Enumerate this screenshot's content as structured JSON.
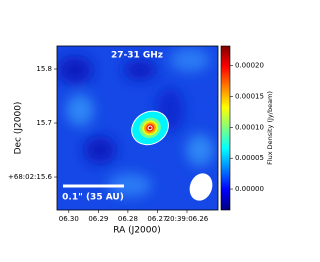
{
  "chart_data": {
    "type": "image",
    "title": "27-31 GHz",
    "xlabel": "RA (J2000)",
    "ylabel": "Dec (J2000)",
    "colorbar_label": "Flux Density (Jy/beam)",
    "scalebar_label": "0.1\" (35 AU)",
    "colormap": "jet",
    "xlim": [
      6.304,
      6.2495
    ],
    "xticks": [
      {
        "value": 6.3,
        "label": "06.30"
      },
      {
        "value": 6.29,
        "label": "06.29"
      },
      {
        "value": 6.28,
        "label": "06.28"
      },
      {
        "value": 6.27,
        "label": "06.27"
      },
      {
        "value": 6.26,
        "label": "20:39:06.26"
      }
    ],
    "ylim": [
      15.539,
      15.8426
    ],
    "yticks": [
      {
        "value": 15.8,
        "label": "15.8"
      },
      {
        "value": 15.7,
        "label": "15.7"
      },
      {
        "value": 15.6,
        "label": "+68:02:15.6"
      }
    ],
    "clim": [
      -3.4e-05,
      0.000232
    ],
    "cticks": [
      {
        "value": 0.0002,
        "label": "0.00020"
      },
      {
        "value": 0.00015,
        "label": "0.00015"
      },
      {
        "value": 0.0001,
        "label": "0.00010"
      },
      {
        "value": 5e-05,
        "label": "0.00005"
      },
      {
        "value": 0,
        "label": "0.00000"
      }
    ],
    "peak": {
      "x": 6.2725,
      "y": 15.691,
      "value": 0.00021
    }
  }
}
